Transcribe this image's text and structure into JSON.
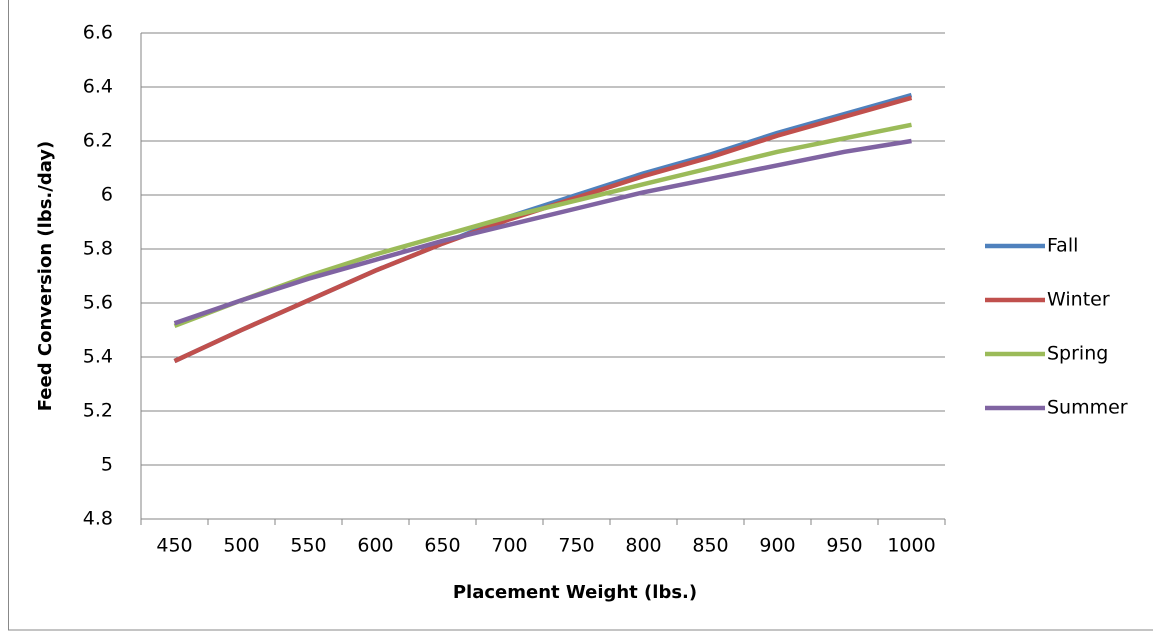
{
  "chart_data": {
    "type": "line",
    "x_label": "Placement Weight (lbs.)",
    "y_label": "Feed Conversion (lbs./day)",
    "categories": [
      "450",
      "500",
      "550",
      "600",
      "650",
      "700",
      "750",
      "800",
      "850",
      "900",
      "950",
      "1000"
    ],
    "series": [
      {
        "name": "Fall",
        "color": "#4f81bd",
        "values": [
          5.385,
          5.5,
          5.61,
          5.72,
          5.82,
          5.92,
          6.0,
          6.08,
          6.15,
          6.23,
          6.3,
          6.37
        ]
      },
      {
        "name": "Winter",
        "color": "#c0504d",
        "values": [
          5.385,
          5.5,
          5.61,
          5.72,
          5.82,
          5.91,
          5.99,
          6.07,
          6.14,
          6.22,
          6.29,
          6.36
        ]
      },
      {
        "name": "Spring",
        "color": "#9bbb59",
        "values": [
          5.515,
          5.61,
          5.7,
          5.78,
          5.85,
          5.92,
          5.98,
          6.04,
          6.1,
          6.16,
          6.21,
          6.26
        ]
      },
      {
        "name": "Summer",
        "color": "#8064a2",
        "values": [
          5.525,
          5.61,
          5.69,
          5.76,
          5.83,
          5.89,
          5.95,
          6.01,
          6.06,
          6.11,
          6.16,
          6.2
        ]
      }
    ],
    "ylim": [
      4.8,
      6.6
    ],
    "yticks": [
      4.8,
      5,
      5.2,
      5.4,
      5.6,
      5.8,
      6,
      6.2,
      6.4,
      6.6
    ],
    "grid": true,
    "legend": "right"
  }
}
